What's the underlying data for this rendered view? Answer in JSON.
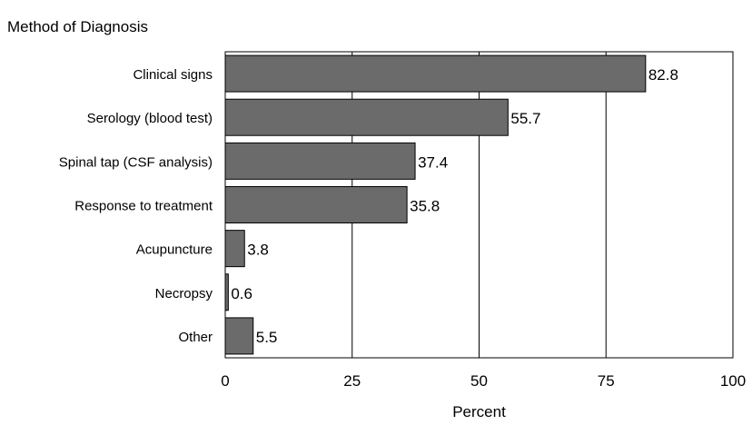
{
  "chart_data": {
    "type": "bar",
    "orientation": "horizontal",
    "title": "Method of Diagnosis",
    "xlabel": "Percent",
    "ylabel": "",
    "categories": [
      "Clinical signs",
      "Serology (blood test)",
      "Spinal tap (CSF analysis)",
      "Response to treatment",
      "Acupuncture",
      "Necropsy",
      "Other"
    ],
    "values": [
      82.8,
      55.7,
      37.4,
      35.8,
      3.8,
      0.6,
      5.5
    ],
    "value_labels": [
      "82.8",
      "55.7",
      "37.4",
      "35.8",
      "3.8",
      "0.6",
      "5.5"
    ],
    "xlim": [
      0,
      100
    ],
    "x_ticks": [
      0,
      25,
      50,
      75,
      100
    ],
    "x_tick_labels": [
      "0",
      "25",
      "50",
      "75",
      "100"
    ],
    "grid": "vertical",
    "legend": "none",
    "colors": {
      "bar_fill": "#6b6b6b",
      "bar_stroke": "#000000",
      "grid": "#000000"
    }
  }
}
